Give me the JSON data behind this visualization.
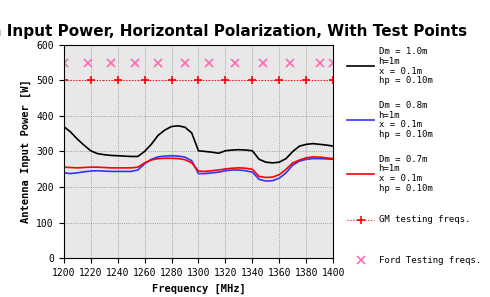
{
  "title": "Antenna Input Power, Horizontal Polarization, With Test Points",
  "xlabel": "Frequency [MHz]",
  "ylabel": "Antenna Input Power [W]",
  "xlim": [
    1200,
    1400
  ],
  "ylim": [
    0,
    600
  ],
  "yticks": [
    0,
    100,
    200,
    300,
    400,
    500,
    600
  ],
  "xticks": [
    1200,
    1220,
    1240,
    1260,
    1280,
    1300,
    1320,
    1340,
    1360,
    1380,
    1400
  ],
  "bg_color": "#e8e8e8",
  "freq_black": [
    1200,
    1205,
    1210,
    1215,
    1220,
    1225,
    1230,
    1235,
    1240,
    1245,
    1250,
    1255,
    1260,
    1265,
    1270,
    1275,
    1280,
    1285,
    1290,
    1295,
    1300,
    1305,
    1310,
    1315,
    1320,
    1325,
    1330,
    1335,
    1340,
    1345,
    1350,
    1355,
    1360,
    1365,
    1370,
    1375,
    1380,
    1385,
    1390,
    1395,
    1400
  ],
  "vals_black": [
    370,
    355,
    335,
    318,
    302,
    294,
    291,
    289,
    288,
    287,
    286,
    286,
    300,
    320,
    345,
    360,
    370,
    372,
    368,
    352,
    302,
    300,
    298,
    295,
    302,
    304,
    305,
    304,
    302,
    278,
    270,
    268,
    270,
    280,
    300,
    315,
    320,
    322,
    320,
    318,
    315
  ],
  "freq_blue": [
    1200,
    1205,
    1210,
    1215,
    1220,
    1225,
    1230,
    1235,
    1240,
    1245,
    1250,
    1255,
    1260,
    1265,
    1270,
    1275,
    1280,
    1285,
    1290,
    1295,
    1300,
    1305,
    1310,
    1315,
    1320,
    1325,
    1330,
    1335,
    1340,
    1345,
    1350,
    1355,
    1360,
    1365,
    1370,
    1375,
    1380,
    1385,
    1390,
    1395,
    1400
  ],
  "vals_blue": [
    240,
    238,
    240,
    243,
    245,
    246,
    245,
    244,
    244,
    244,
    244,
    248,
    265,
    278,
    285,
    287,
    288,
    287,
    284,
    274,
    238,
    238,
    240,
    242,
    246,
    248,
    248,
    246,
    242,
    222,
    217,
    218,
    225,
    240,
    262,
    273,
    278,
    280,
    280,
    279,
    278
  ],
  "freq_red": [
    1200,
    1205,
    1210,
    1215,
    1220,
    1225,
    1230,
    1235,
    1240,
    1245,
    1250,
    1255,
    1260,
    1265,
    1270,
    1275,
    1280,
    1285,
    1290,
    1295,
    1300,
    1305,
    1310,
    1315,
    1320,
    1325,
    1330,
    1335,
    1340,
    1345,
    1350,
    1355,
    1360,
    1365,
    1370,
    1375,
    1380,
    1385,
    1390,
    1395,
    1400
  ],
  "vals_red": [
    256,
    255,
    254,
    255,
    256,
    256,
    255,
    254,
    254,
    254,
    254,
    256,
    268,
    276,
    280,
    281,
    281,
    280,
    277,
    268,
    245,
    244,
    246,
    248,
    251,
    253,
    254,
    253,
    250,
    230,
    227,
    228,
    235,
    250,
    268,
    276,
    282,
    285,
    284,
    282,
    280
  ],
  "gm_freqs": [
    1200,
    1220,
    1240,
    1260,
    1280,
    1300,
    1320,
    1340,
    1360,
    1380,
    1400
  ],
  "gm_power": 500,
  "ford_freqs": [
    1200,
    1218,
    1235,
    1253,
    1270,
    1290,
    1308,
    1327,
    1348,
    1368,
    1390,
    1400
  ],
  "ford_power": 548,
  "legend_line1_black": "Dm = 1.0m",
  "legend_line2_black": "h=1m",
  "legend_line3_black": "x = 0.1m",
  "legend_line4_black": "hp = 0.10m",
  "legend_line1_blue": "Dm = 0.8m",
  "legend_line2_blue": "h=1m",
  "legend_line3_blue": "x = 0.1m",
  "legend_line4_blue": "hp = 0.10m",
  "legend_line1_red": "Dm = 0.7m",
  "legend_line2_red": "h=1m",
  "legend_line3_red": "x = 0.1m",
  "legend_line4_red": "hp = 0.10m",
  "legend_gm": "GM testing freqs.",
  "legend_ford": "Ford Testing freqs.",
  "line_black": "#000000",
  "line_blue": "#3333ff",
  "line_red": "#ff0000",
  "gm_color": "#ff0000",
  "ford_color": "#ff69b4",
  "title_fontsize": 11,
  "label_fontsize": 7.5,
  "tick_fontsize": 7,
  "legend_fontsize": 6.5
}
